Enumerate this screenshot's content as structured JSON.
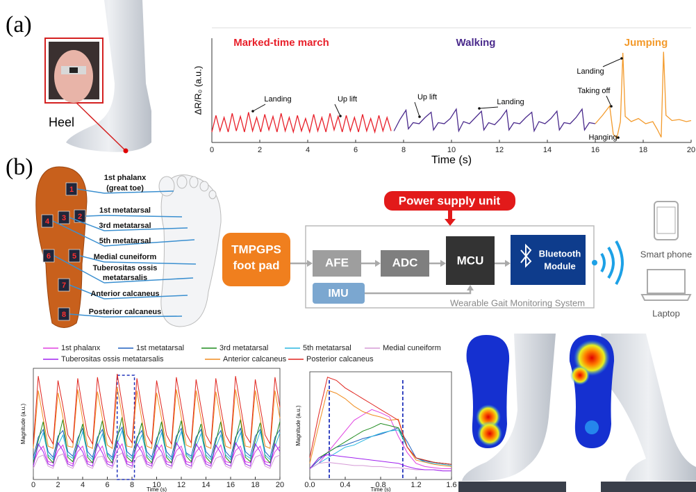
{
  "panel_labels": [
    "(a)",
    "(b)"
  ],
  "heel_label": "Heel",
  "insole": {
    "sensor_numbers": [
      "1",
      "2",
      "3",
      "4",
      "5",
      "6",
      "7",
      "8"
    ],
    "sensor_labels": [
      [
        "1st phalanx",
        "(great toe)"
      ],
      [
        "1st metatarsal"
      ],
      [
        "3rd metatarsal"
      ],
      [
        "5th metatarsal"
      ],
      [
        "Medial cuneiform"
      ],
      [
        "Tuberositas ossis",
        "metatarsalis"
      ],
      [
        "Anterior calcaneus"
      ],
      [
        "Posterior calcaneus"
      ]
    ]
  },
  "system": {
    "pad": [
      "TMPGPS",
      "foot pad"
    ],
    "afe": "AFE",
    "adc": "ADC",
    "mcu": "MCU",
    "bluetooth": [
      "Bluetooth",
      "Module"
    ],
    "imu": "IMU",
    "power": "Power supply unit",
    "system_name": "Wearable Gait Monitoring System",
    "phone": "Smart phone",
    "laptop": "Laptop"
  },
  "chart_data": [
    {
      "type": "line",
      "ylabel": "ΔR/R₀ (a.u.)",
      "xlabel": "Time (s)",
      "xlim": [
        0,
        20
      ],
      "xticks": [
        0,
        2,
        4,
        6,
        8,
        10,
        12,
        14,
        16,
        18,
        20
      ],
      "ylim": [
        0,
        10
      ],
      "annotations": [
        "Landing",
        "Up lift",
        "Up lift",
        "Landing",
        "Landing",
        "Taking off",
        "Hanging"
      ],
      "series": [
        {
          "name": "Marked-time march",
          "color": "#e8202a",
          "x": [
            0,
            0.17,
            0.34,
            0.51,
            0.68,
            0.85,
            1.02,
            1.19,
            1.36,
            1.53,
            1.7,
            1.87,
            2.04,
            2.21,
            2.38,
            2.55,
            2.72,
            2.89,
            3.06,
            3.23,
            3.4,
            3.57,
            3.74,
            3.91,
            4.08,
            4.25,
            4.42,
            4.59,
            4.76,
            4.93,
            5.1,
            5.27,
            5.44,
            5.61,
            5.78,
            5.95,
            6.12,
            6.29,
            6.46,
            6.63,
            6.8,
            6.97,
            7.14,
            7.31,
            7.48
          ],
          "values": [
            1.0,
            2.6,
            1.1,
            2.4,
            1.0,
            2.8,
            1.1,
            2.5,
            1.0,
            2.9,
            1.1,
            2.4,
            1.0,
            2.7,
            1.2,
            2.5,
            1.0,
            2.8,
            1.1,
            2.4,
            1.0,
            2.6,
            1.1,
            2.3,
            1.0,
            2.7,
            1.1,
            2.4,
            1.0,
            2.8,
            1.2,
            2.5,
            1.0,
            2.6,
            1.1,
            2.4,
            1.0,
            2.7,
            1.1,
            2.3,
            1.0,
            2.6,
            1.1,
            2.4,
            1.1
          ]
        },
        {
          "name": "Walking",
          "color": "#4a2a8c",
          "x": [
            7.6,
            7.85,
            8.1,
            8.2,
            8.4,
            8.65,
            8.9,
            9.15,
            9.25,
            9.45,
            9.7,
            9.95,
            10.2,
            10.3,
            10.5,
            10.75,
            11.0,
            11.25,
            11.35,
            11.55,
            11.8,
            12.05,
            12.3,
            12.4,
            12.6,
            12.85,
            13.1,
            13.35,
            13.45,
            13.65,
            13.9,
            14.15,
            14.4,
            14.5,
            14.7,
            14.95,
            15.2,
            15.45,
            15.55,
            15.75,
            16.0
          ],
          "values": [
            1.1,
            2.2,
            3.1,
            1.3,
            1.9,
            1.8,
            2.4,
            2.9,
            1.2,
            1.9,
            1.8,
            2.3,
            3.2,
            1.1,
            2.0,
            1.8,
            2.4,
            3.0,
            1.2,
            1.9,
            1.7,
            2.3,
            3.1,
            1.2,
            1.9,
            1.8,
            2.4,
            2.9,
            1.1,
            2.0,
            1.8,
            2.3,
            3.0,
            1.2,
            1.9,
            1.8,
            2.4,
            3.2,
            1.2,
            1.9,
            1.8
          ]
        },
        {
          "name": "Jumping",
          "color": "#f39a2b",
          "x": [
            16.0,
            16.3,
            16.6,
            16.75,
            16.9,
            17.05,
            17.15,
            17.25,
            17.5,
            17.8,
            18.1,
            18.4,
            18.6,
            18.75,
            18.85,
            18.95,
            19.2,
            19.5,
            19.8,
            20.0
          ],
          "values": [
            1.8,
            2.6,
            3.5,
            0.8,
            0.4,
            2.0,
            8.6,
            2.5,
            2.0,
            2.3,
            1.8,
            2.0,
            1.2,
            0.5,
            8.7,
            2.6,
            2.1,
            2.2,
            2.0,
            2.1
          ]
        }
      ]
    },
    {
      "type": "line",
      "ylabel": "Magnitude (a.u.)",
      "xlabel": "Time (s)",
      "xlim": [
        0,
        20
      ],
      "xticks": [
        0,
        2,
        4,
        6,
        8,
        10,
        12,
        14,
        16,
        18,
        20
      ],
      "ylim": [
        0,
        10
      ],
      "highlight": [
        6.8,
        8.2
      ],
      "x": [
        0,
        0.4,
        0.8,
        1.2,
        1.6,
        2.0,
        2.4,
        2.8,
        3.2,
        3.6,
        4.0,
        4.4,
        4.8,
        5.2,
        5.6,
        6.0,
        6.4,
        6.8,
        7.2,
        7.6,
        8.0,
        8.4,
        8.8,
        9.2,
        9.6,
        10.0,
        10.4,
        10.8,
        11.2,
        11.6,
        12.0,
        12.4,
        12.8,
        13.2,
        13.6,
        14.0,
        14.4,
        14.8,
        15.2,
        15.6,
        16.0,
        16.4,
        16.8,
        17.2,
        17.6,
        18.0,
        18.4,
        18.8,
        19.2,
        19.6,
        20.0
      ],
      "series": [
        {
          "name": "1st phalanx",
          "color": "#e040e0",
          "values": [
            1.5,
            2.5,
            3.0,
            1.6,
            1.5,
            2.6,
            3.1,
            1.6,
            1.4,
            2.5,
            3.0,
            1.6,
            1.5,
            2.4,
            3.0,
            1.6,
            1.5,
            2.6,
            3.2,
            1.6,
            1.5,
            2.5,
            3.0,
            1.6,
            1.4,
            2.5,
            3.1,
            1.6,
            1.5,
            2.6,
            3.0,
            1.6,
            1.5,
            2.5,
            3.0,
            1.6,
            1.4,
            2.4,
            3.1,
            1.6,
            1.5,
            2.6,
            3.0,
            1.6,
            1.5,
            2.5,
            3.0,
            1.6,
            1.5,
            2.5,
            3.0
          ]
        },
        {
          "name": "1st metatarsal",
          "color": "#1f5fbf",
          "values": [
            2.0,
            3.8,
            4.5,
            2.5,
            2.0,
            3.9,
            4.4,
            2.5,
            2.1,
            3.7,
            4.6,
            2.5,
            2.0,
            3.8,
            4.5,
            2.4,
            2.0,
            4.0,
            4.7,
            2.5,
            2.1,
            3.8,
            4.4,
            2.5,
            2.0,
            3.7,
            4.5,
            2.5,
            2.0,
            3.9,
            4.6,
            2.4,
            2.1,
            3.8,
            4.5,
            2.5,
            2.0,
            3.7,
            4.4,
            2.5,
            2.0,
            3.8,
            4.6,
            2.5,
            2.1,
            3.9,
            4.5,
            2.5,
            2.0,
            3.8,
            4.5
          ]
        },
        {
          "name": "3rd metatarsal",
          "color": "#1e8b1e",
          "values": [
            1.5,
            3.5,
            5.2,
            2.0,
            1.5,
            3.6,
            5.4,
            2.0,
            1.6,
            3.4,
            5.0,
            2.0,
            1.5,
            3.5,
            5.3,
            2.1,
            1.5,
            3.7,
            5.6,
            2.0,
            1.6,
            3.5,
            5.1,
            2.0,
            1.5,
            3.4,
            5.2,
            2.0,
            1.5,
            3.6,
            5.3,
            2.1,
            1.6,
            3.5,
            5.0,
            2.0,
            1.5,
            3.4,
            5.2,
            2.0,
            1.5,
            3.6,
            5.4,
            2.0,
            1.6,
            3.5,
            5.1,
            2.0,
            1.5,
            3.5,
            5.2
          ]
        },
        {
          "name": "5th metatarsal",
          "color": "#29b6e0",
          "values": [
            1.8,
            3.0,
            4.2,
            2.2,
            1.8,
            3.1,
            4.0,
            2.2,
            1.9,
            2.9,
            4.3,
            2.2,
            1.8,
            3.0,
            4.1,
            2.3,
            1.8,
            3.2,
            4.4,
            2.2,
            1.9,
            3.0,
            4.0,
            2.2,
            1.8,
            2.9,
            4.2,
            2.2,
            1.8,
            3.1,
            4.3,
            2.3,
            1.9,
            3.0,
            4.1,
            2.2,
            1.8,
            2.9,
            4.0,
            2.2,
            1.8,
            3.1,
            4.2,
            2.2,
            1.9,
            3.0,
            4.3,
            2.2,
            1.8,
            3.0,
            4.2
          ]
        },
        {
          "name": "Medial cuneiform",
          "color": "#d59ad6",
          "values": [
            1.0,
            2.0,
            2.2,
            1.2,
            1.0,
            2.1,
            2.3,
            1.2,
            1.0,
            1.9,
            2.2,
            1.2,
            1.0,
            2.0,
            2.1,
            1.2,
            1.0,
            2.1,
            2.4,
            1.2,
            1.0,
            2.0,
            2.2,
            1.2,
            1.0,
            1.9,
            2.2,
            1.2,
            1.0,
            2.1,
            2.3,
            1.2,
            1.0,
            2.0,
            2.2,
            1.2,
            1.0,
            1.9,
            2.1,
            1.2,
            1.0,
            2.1,
            2.3,
            1.2,
            1.0,
            2.0,
            2.2,
            1.2,
            1.0,
            2.0,
            2.2
          ]
        },
        {
          "name": "Tuberositas ossis metatarsalis",
          "color": "#a020f0",
          "values": [
            1.2,
            3.2,
            2.5,
            1.4,
            1.2,
            3.3,
            2.6,
            1.4,
            1.2,
            3.1,
            2.5,
            1.4,
            1.2,
            3.2,
            2.4,
            1.4,
            1.2,
            3.4,
            2.6,
            1.4,
            1.2,
            3.2,
            2.5,
            1.4,
            1.2,
            3.1,
            2.5,
            1.4,
            1.2,
            3.3,
            2.6,
            1.4,
            1.2,
            3.2,
            2.5,
            1.4,
            1.2,
            3.1,
            2.4,
            1.4,
            1.2,
            3.3,
            2.6,
            1.4,
            1.2,
            3.2,
            2.5,
            1.4,
            1.2,
            3.2,
            2.5
          ]
        },
        {
          "name": "Anterior calcaneus",
          "color": "#f08c1e",
          "values": [
            2.8,
            8.0,
            5.5,
            3.0,
            2.8,
            7.8,
            5.6,
            3.0,
            2.9,
            8.1,
            5.4,
            3.0,
            2.8,
            7.9,
            5.5,
            3.1,
            2.8,
            8.3,
            5.8,
            3.0,
            2.9,
            8.0,
            5.4,
            3.0,
            2.8,
            7.8,
            5.5,
            3.0,
            2.8,
            8.1,
            5.6,
            3.1,
            2.9,
            8.0,
            5.5,
            3.0,
            2.8,
            7.9,
            5.4,
            3.0,
            2.8,
            8.1,
            5.6,
            3.0,
            2.9,
            8.0,
            5.5,
            3.0,
            2.8,
            8.0,
            5.5
          ]
        },
        {
          "name": "Posterior calcaneus",
          "color": "#e0241e",
          "values": [
            3.2,
            9.3,
            6.5,
            4.0,
            3.2,
            8.9,
            6.6,
            4.0,
            3.3,
            9.1,
            6.4,
            4.0,
            3.2,
            9.2,
            6.5,
            4.1,
            3.2,
            9.5,
            6.8,
            4.0,
            3.3,
            9.1,
            6.4,
            4.0,
            3.2,
            8.9,
            6.5,
            4.0,
            3.2,
            9.2,
            6.6,
            4.1,
            3.3,
            9.0,
            6.5,
            4.0,
            3.2,
            9.1,
            6.4,
            4.0,
            3.2,
            9.3,
            6.6,
            4.0,
            3.3,
            9.0,
            6.5,
            4.0,
            3.2,
            9.2,
            6.5
          ]
        }
      ]
    },
    {
      "type": "line",
      "ylabel": "Magnitude (a.u.)",
      "xlabel": "Time (s)",
      "xlim": [
        0,
        1.6
      ],
      "xticks": [
        {
          "value": 0,
          "label": "0.0"
        },
        0.4,
        0.8,
        1.2,
        1.6
      ],
      "ylim": [
        0,
        10
      ],
      "markers": [
        0.22,
        1.05
      ],
      "x": [
        0,
        0.1,
        0.2,
        0.3,
        0.4,
        0.5,
        0.6,
        0.7,
        0.8,
        0.9,
        1.0,
        1.1,
        1.2,
        1.3,
        1.4,
        1.5,
        1.6
      ],
      "series": [
        {
          "color": "#e040e0",
          "values": [
            1.0,
            1.5,
            2.5,
            3.5,
            4.5,
            5.5,
            6.0,
            6.5,
            6.2,
            5.8,
            4.0,
            2.5,
            1.5,
            1.2,
            1.1,
            1.0,
            1.0
          ]
        },
        {
          "color": "#1f5fbf",
          "values": [
            1.0,
            1.8,
            2.5,
            3.0,
            3.2,
            3.5,
            3.8,
            4.0,
            4.2,
            4.5,
            4.8,
            3.5,
            2.0,
            1.7,
            1.6,
            1.5,
            1.4
          ]
        },
        {
          "color": "#1e8b1e",
          "values": [
            1.0,
            2.0,
            2.5,
            3.0,
            3.5,
            4.0,
            4.5,
            4.8,
            5.2,
            5.0,
            4.8,
            3.0,
            2.0,
            1.8,
            1.6,
            1.5,
            1.4
          ]
        },
        {
          "color": "#29b6e0",
          "values": [
            1.0,
            1.5,
            2.0,
            2.5,
            3.0,
            3.2,
            3.6,
            4.0,
            4.3,
            4.5,
            4.6,
            3.0,
            2.0,
            1.6,
            1.5,
            1.4,
            1.3
          ]
        },
        {
          "color": "#d59ad6",
          "values": [
            1.0,
            1.5,
            1.6,
            1.5,
            1.4,
            1.3,
            1.3,
            1.2,
            1.2,
            1.1,
            1.1,
            1.0,
            0.9,
            0.9,
            0.9,
            0.8,
            0.8
          ]
        },
        {
          "color": "#a020f0",
          "values": [
            1.0,
            2.0,
            2.3,
            2.2,
            2.1,
            2.0,
            1.9,
            1.8,
            1.7,
            1.6,
            1.5,
            1.2,
            1.0,
            0.9,
            0.9,
            0.8,
            0.8
          ]
        },
        {
          "color": "#f08c1e",
          "values": [
            1.5,
            5.0,
            8.3,
            8.0,
            7.5,
            6.8,
            6.3,
            6.0,
            5.8,
            5.5,
            5.6,
            3.0,
            1.8,
            1.6,
            1.4,
            1.3,
            1.2
          ]
        },
        {
          "color": "#e0241e",
          "values": [
            2.0,
            6.0,
            9.5,
            9.2,
            8.5,
            8.0,
            7.5,
            7.0,
            6.5,
            6.0,
            5.5,
            3.0,
            2.0,
            1.8,
            1.6,
            1.5,
            1.4
          ]
        }
      ]
    }
  ]
}
